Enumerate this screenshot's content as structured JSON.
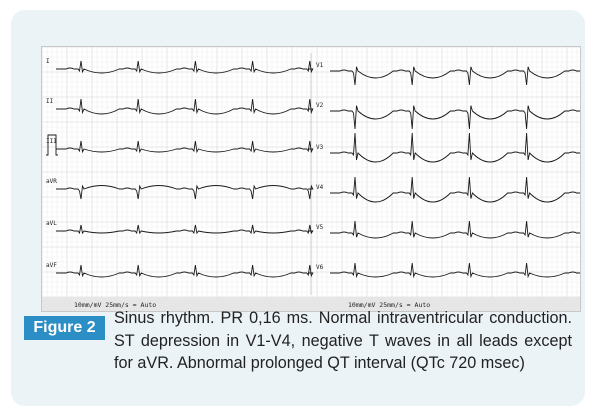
{
  "figure": {
    "label": "Figure 2",
    "caption": "Sinus rhythm. PR 0,16 ms. Normal intraventricular conduction. ST depression in V1-V4, negative T waves in all leads except for aVR. Abnormal prolonged QT interval (QTc 720 msec)"
  },
  "ecg": {
    "left_leads": [
      "I",
      "II",
      "III",
      "aVR",
      "aVL",
      "aVF"
    ],
    "right_leads": [
      "V1",
      "V2",
      "V3",
      "V4",
      "V5",
      "V6"
    ],
    "footer_left": "10mm/mV 25mm/s ≈ Auto",
    "footer_right": "10mm/mV 25mm/s ≈ Auto"
  },
  "colors": {
    "frame_bg": "#ebf3f7",
    "label_bg": "#2b8ec5",
    "grid": "#dcdcdc",
    "trace": "#1a1a1a"
  }
}
